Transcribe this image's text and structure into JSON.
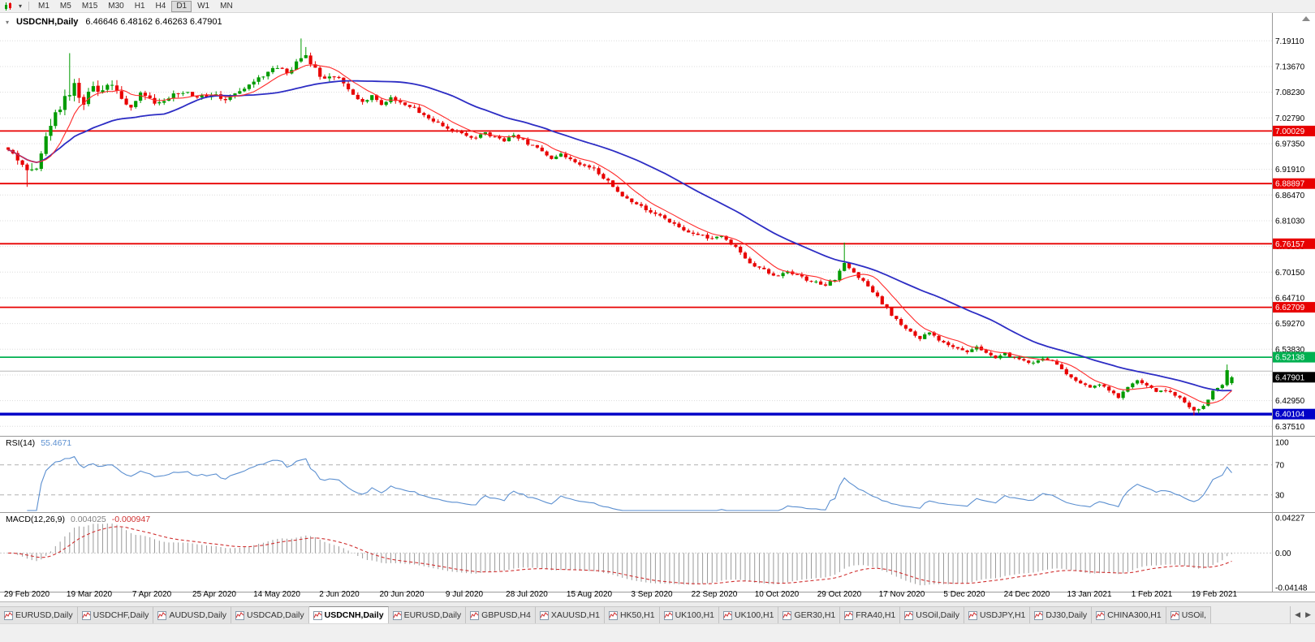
{
  "icons": {
    "dropdown_caret": "▾",
    "scroll_up": "▲"
  },
  "toolbar": {
    "timeframes": [
      "M1",
      "M5",
      "M15",
      "M30",
      "H1",
      "H4",
      "D1",
      "W1",
      "MN"
    ],
    "active": "D1"
  },
  "chart": {
    "symbol_period": "USDCNH,Daily",
    "ohlc_text": "6.46646 6.48162 6.46263 6.47901"
  },
  "rsi": {
    "name": "RSI(14)",
    "value_text": "55.4671"
  },
  "macd": {
    "name": "MACD(12,26,9)",
    "value_text": "0.004025",
    "signal_text": "-0.000947"
  },
  "tab_arrows": {
    "left": "◀",
    "right": "▶"
  },
  "tabs": [
    {
      "label": "EURUSD,Daily"
    },
    {
      "label": "USDCHF,Daily"
    },
    {
      "label": "AUDUSD,Daily"
    },
    {
      "label": "USDCAD,Daily"
    },
    {
      "label": "USDCNH,Daily",
      "active": true
    },
    {
      "label": "EURUSD,Daily"
    },
    {
      "label": "GBPUSD,H4"
    },
    {
      "label": "XAUUSD,H1"
    },
    {
      "label": "HK50,H1"
    },
    {
      "label": "UK100,H1"
    },
    {
      "label": "UK100,H1"
    },
    {
      "label": "GER30,H1"
    },
    {
      "label": "FRA40,H1"
    },
    {
      "label": "USOil,Daily"
    },
    {
      "label": "USDJPY,H1"
    },
    {
      "label": "DJ30,Daily"
    },
    {
      "label": "CHINA300,H1"
    },
    {
      "label": "USOil,"
    }
  ],
  "chart_data": {
    "type": "candlestick",
    "symbol": "USDCNH",
    "period": "Daily",
    "last_candle": {
      "o": 6.46646,
      "h": 6.48162,
      "l": 6.46263,
      "c": 6.47901
    },
    "current_price": "6.47901",
    "ask_line": 6.4919,
    "price_axis": {
      "top_price": 7.25,
      "bottom_price": 6.355,
      "ticks": [
        "7.19110",
        "7.13670",
        "7.08230",
        "7.02790",
        "6.97350",
        "6.91910",
        "6.86470",
        "6.81030",
        "6.75590",
        "6.70150",
        "6.64710",
        "6.59270",
        "6.53830",
        "6.48390",
        "6.42950",
        "6.37510"
      ]
    },
    "hlines": [
      {
        "label": "7.00029",
        "price": 7.00029,
        "color": "#e80000",
        "width": 1.8
      },
      {
        "label": "6.88897",
        "price": 6.88897,
        "color": "#e80000",
        "width": 1.8
      },
      {
        "label": "6.76157",
        "price": 6.76157,
        "color": "#e80000",
        "width": 1.8
      },
      {
        "label": "6.62709",
        "price": 6.62709,
        "color": "#e80000",
        "width": 1.8
      },
      {
        "label": "6.52138",
        "price": 6.52138,
        "color": "#00b050",
        "width": 1.8
      },
      {
        "label": "6.40104",
        "price": 6.40104,
        "color": "#0000c8",
        "width": 3.5
      }
    ],
    "x_labels": [
      "29 Feb 2020",
      "19 Mar 2020",
      "7 Apr 2020",
      "25 Apr 2020",
      "14 May 2020",
      "2 Jun 2020",
      "20 Jun 2020",
      "9 Jul 2020",
      "28 Jul 2020",
      "15 Aug 2020",
      "3 Sep 2020",
      "22 Sep 2020",
      "10 Oct 2020",
      "29 Oct 2020",
      "17 Nov 2020",
      "5 Dec 2020",
      "24 Dec 2020",
      "13 Jan 2021",
      "1 Feb 2021",
      "19 Feb 2021"
    ],
    "candles_n": 260,
    "anchors": [
      [
        0,
        6.96
      ],
      [
        2,
        6.938
      ],
      [
        4,
        6.916
      ],
      [
        6,
        6.928
      ],
      [
        8,
        6.988
      ],
      [
        10,
        7.035
      ],
      [
        12,
        7.075
      ],
      [
        14,
        7.095
      ],
      [
        16,
        7.06
      ],
      [
        18,
        7.095
      ],
      [
        20,
        7.08
      ],
      [
        22,
        7.105
      ],
      [
        24,
        7.068
      ],
      [
        26,
        7.05
      ],
      [
        28,
        7.078
      ],
      [
        31,
        7.062
      ],
      [
        34,
        7.072
      ],
      [
        37,
        7.085
      ],
      [
        40,
        7.068
      ],
      [
        43,
        7.08
      ],
      [
        46,
        7.068
      ],
      [
        49,
        7.082
      ],
      [
        52,
        7.108
      ],
      [
        55,
        7.122
      ],
      [
        57,
        7.138
      ],
      [
        59,
        7.12
      ],
      [
        61,
        7.148
      ],
      [
        63,
        7.16
      ],
      [
        65,
        7.13
      ],
      [
        67,
        7.108
      ],
      [
        69,
        7.118
      ],
      [
        71,
        7.102
      ],
      [
        73,
        7.08
      ],
      [
        75,
        7.062
      ],
      [
        77,
        7.075
      ],
      [
        79,
        7.058
      ],
      [
        81,
        7.068
      ],
      [
        83,
        7.062
      ],
      [
        85,
        7.052
      ],
      [
        87,
        7.042
      ],
      [
        89,
        7.028
      ],
      [
        91,
        7.015
      ],
      [
        93,
        7.005
      ],
      [
        95,
        6.998
      ],
      [
        97,
        6.992
      ],
      [
        99,
        6.985
      ],
      [
        101,
        6.996
      ],
      [
        103,
        6.988
      ],
      [
        105,
        6.978
      ],
      [
        107,
        6.99
      ],
      [
        109,
        6.98
      ],
      [
        111,
        6.968
      ],
      [
        113,
        6.956
      ],
      [
        115,
        6.944
      ],
      [
        117,
        6.952
      ],
      [
        119,
        6.94
      ],
      [
        121,
        6.93
      ],
      [
        123,
        6.926
      ],
      [
        125,
        6.912
      ],
      [
        127,
        6.892
      ],
      [
        129,
        6.872
      ],
      [
        131,
        6.855
      ],
      [
        133,
        6.842
      ],
      [
        135,
        6.836
      ],
      [
        137,
        6.824
      ],
      [
        139,
        6.812
      ],
      [
        141,
        6.802
      ],
      [
        143,
        6.792
      ],
      [
        145,
        6.784
      ],
      [
        147,
        6.778
      ],
      [
        149,
        6.772
      ],
      [
        151,
        6.78
      ],
      [
        153,
        6.762
      ],
      [
        155,
        6.742
      ],
      [
        157,
        6.722
      ],
      [
        159,
        6.71
      ],
      [
        161,
        6.7
      ],
      [
        163,
        6.694
      ],
      [
        165,
        6.704
      ],
      [
        167,
        6.696
      ],
      [
        169,
        6.686
      ],
      [
        171,
        6.68
      ],
      [
        173,
        6.676
      ],
      [
        175,
        6.688
      ],
      [
        177,
        6.718
      ],
      [
        179,
        6.7
      ],
      [
        181,
        6.682
      ],
      [
        183,
        6.66
      ],
      [
        185,
        6.636
      ],
      [
        187,
        6.612
      ],
      [
        189,
        6.592
      ],
      [
        191,
        6.576
      ],
      [
        193,
        6.562
      ],
      [
        195,
        6.572
      ],
      [
        197,
        6.556
      ],
      [
        199,
        6.546
      ],
      [
        201,
        6.538
      ],
      [
        203,
        6.532
      ],
      [
        205,
        6.542
      ],
      [
        207,
        6.53
      ],
      [
        209,
        6.522
      ],
      [
        211,
        6.528
      ],
      [
        213,
        6.52
      ],
      [
        215,
        6.514
      ],
      [
        217,
        6.51
      ],
      [
        219,
        6.52
      ],
      [
        221,
        6.512
      ],
      [
        223,
        6.496
      ],
      [
        225,
        6.48
      ],
      [
        227,
        6.466
      ],
      [
        229,
        6.456
      ],
      [
        231,
        6.464
      ],
      [
        233,
        6.45
      ],
      [
        235,
        6.438
      ],
      [
        237,
        6.456
      ],
      [
        239,
        6.472
      ],
      [
        241,
        6.462
      ],
      [
        243,
        6.448
      ],
      [
        245,
        6.452
      ],
      [
        247,
        6.442
      ],
      [
        249,
        6.428
      ],
      [
        251,
        6.408
      ],
      [
        253,
        6.418
      ],
      [
        255,
        6.448
      ],
      [
        257,
        6.462
      ],
      [
        258,
        6.495
      ],
      [
        259,
        6.479
      ]
    ],
    "vol": [
      [
        0,
        0.016
      ],
      [
        6,
        0.026
      ],
      [
        16,
        0.03
      ],
      [
        26,
        0.018
      ],
      [
        40,
        0.013
      ],
      [
        60,
        0.014
      ],
      [
        80,
        0.011
      ],
      [
        100,
        0.009
      ],
      [
        130,
        0.01
      ],
      [
        160,
        0.009
      ],
      [
        190,
        0.009
      ],
      [
        220,
        0.008
      ],
      [
        245,
        0.009
      ],
      [
        259,
        0.006
      ]
    ],
    "wick_events": [
      [
        4,
        "low",
        6.882
      ],
      [
        13,
        "high",
        7.165
      ],
      [
        62,
        "high",
        7.196
      ],
      [
        63,
        "high",
        7.178
      ],
      [
        177,
        "high",
        6.764
      ],
      [
        251,
        "low",
        6.398
      ],
      [
        252,
        "low",
        6.402
      ],
      [
        258,
        "high",
        6.506
      ]
    ],
    "ma": {
      "fast_period": 8,
      "slow_period": 34,
      "fast_color": "#ff2a2a",
      "slow_color": "#2d2dc4"
    },
    "colors": {
      "up": "#009b00",
      "down": "#e80000",
      "grid": "#dcdcdc",
      "ask_line": "#b8b8b8"
    },
    "rsi": {
      "period": 14,
      "last": 55.4671,
      "axis": [
        "100",
        "70",
        "30"
      ],
      "level_lines": [
        70,
        30
      ],
      "line_color": "#5b8fd0"
    },
    "macd": {
      "fast": 12,
      "slow": 26,
      "signal": 9,
      "last": 0.004025,
      "signal_last": -0.000947,
      "axis": [
        "0.04227",
        "0.00",
        "-0.04148"
      ],
      "hist_color": "#9a9a9a",
      "signal_color": "#d03030"
    }
  }
}
